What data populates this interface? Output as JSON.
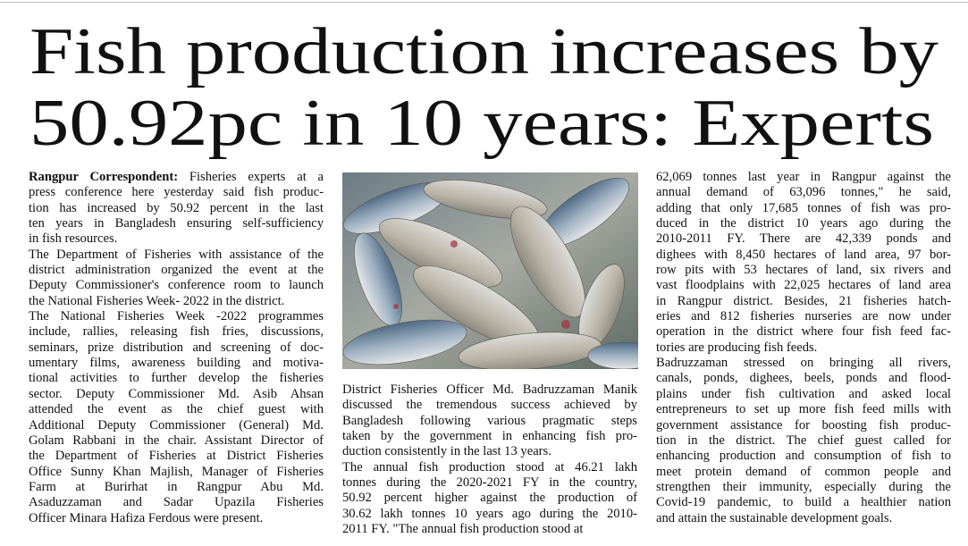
{
  "headline": {
    "lines": [
      "Fish production increases by",
      "50.92pc in 10 years: Experts"
    ]
  },
  "columns": [
    {
      "byline": "Rangpur Correspondent:",
      "paragraphs": [
        {
          "lines": [
            "Fisheries experts at a",
            "press conference here yesterday said fish produc-",
            "tion has increased by 50.92 percent in the last",
            "ten years in Bangladesh ensuring self-sufficiency",
            "in fish resources."
          ]
        },
        {
          "lines": [
            "The Department of Fisheries with assistance of the",
            "district administration organized the event at the",
            "Deputy Commissioner's conference room to launch",
            "the National Fisheries Week- 2022 in the district."
          ]
        },
        {
          "lines": [
            "The National Fisheries Week -2022 programmes",
            "include, rallies, releasing fish fries, discussions,",
            "seminars, prize distribution and screening of doc-",
            "umentary films, awareness building and motiva-",
            "tional activities to further develop the fisheries",
            "sector. Deputy Commissioner Md. Asib Ahsan",
            "attended the event as the chief guest with",
            "Additional Deputy Commissioner (General) Md.",
            "Golam Rabbani in the chair. Assistant Director of",
            "the Department of Fisheries at District Fisheries",
            "Office Sunny Khan Majlish, Manager of Fisheries",
            "Farm at Burirhat in Rangpur Abu Md.",
            "Asaduzzaman and Sadar Upazila Fisheries",
            "Officer Minara Hafiza Ferdous were present."
          ]
        }
      ]
    },
    {
      "paragraphs": [
        {
          "lines": [
            "District Fisheries Officer Md. Badruzzaman Manik",
            "discussed the tremendous success achieved by",
            "Bangladesh following various pragmatic steps",
            "taken by the government in enhancing fish pro-",
            "duction consistently in the last 13 years."
          ]
        },
        {
          "lines": [
            "The annual fish production stood at 46.21 lakh",
            "tonnes during the 2020-2021 FY in the country,",
            "50.92 percent higher against the production of",
            "30.62 lakh tonnes 10 years ago during the 2010-",
            "2011 FY. \"The annual fish production stood at"
          ]
        }
      ]
    },
    {
      "paragraphs": [
        {
          "lines": [
            "62,069 tonnes last year in Rangpur against the",
            "annual demand of 63,096 tonnes,\" he said,",
            "adding that only 17,685 tonnes of fish was pro-",
            "duced in the district 10 years ago during the",
            "2010-2011 FY. There are 42,339 ponds and",
            "dighees with 8,450 hectares of land area, 97 bor-",
            "row pits with 53 hectares of land, six rivers and",
            "vast floodplains with 22,025 hectares of land area",
            "in Rangpur district. Besides, 21 fisheries hatch-",
            "eries and 812 fisheries nurseries are now under",
            "operation in the district where four fish feed fac-",
            "tories are producing fish feeds."
          ]
        },
        {
          "lines": [
            "Badruzzaman stressed on bringing all rivers,",
            "canals, ponds, dighees, beels, ponds and flood-",
            "plains under fish cultivation and asked local",
            "entrepreneurs to set up more fish feed mills with",
            "government assistance for boosting fish produc-",
            "tion in the district. The chief guest called for",
            "enhancing production and consumption of fish to",
            "meet protein demand of common people and",
            "strengthen their immunity, especially during the",
            "Covid-19 pandemic, to build a healthier nation",
            "and attain the sustainable development goals."
          ]
        }
      ]
    }
  ]
}
